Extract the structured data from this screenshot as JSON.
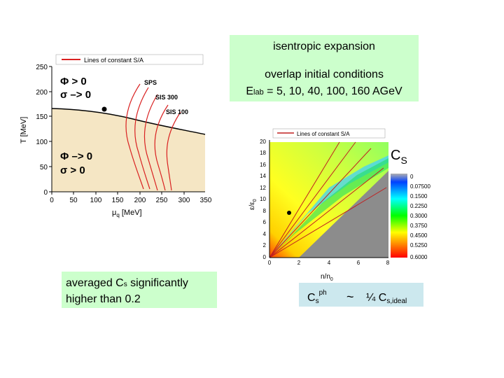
{
  "green_box": {
    "line1": "isentropic expansion",
    "line2": "overlap initial conditions",
    "line3_prefix": "E",
    "line3_sub": "lab",
    "line3_rest": " = 5, 10, 40, 100, 160 AGeV"
  },
  "left_plot": {
    "legend": "Lines of constant S/A",
    "ylabel": "T [MeV]",
    "xlabel_mu": "μ",
    "xlabel_sub": "q",
    "xlabel_unit": " [MeV]",
    "yticks": [
      "0",
      "50",
      "100",
      "150",
      "200",
      "250"
    ],
    "xticks": [
      "0",
      "50",
      "100",
      "150",
      "200",
      "250",
      "300",
      "350"
    ],
    "phase_upper_1": "Φ > 0",
    "phase_upper_2": "σ –> 0",
    "phase_lower_1": "Φ –> 0",
    "phase_lower_2": "σ > 0",
    "label_sps": "SPS",
    "label_sis300": "SIS 300",
    "label_sis100": "SIS 100",
    "colors": {
      "background": "#f5e6c4",
      "lines": "#d92020"
    }
  },
  "right_plot": {
    "legend": "Lines of constant S/A",
    "ylabel": "ε/ε",
    "ylabel_sub": "0",
    "xlabel": "n/n",
    "xlabel_sub": "0",
    "yticks": [
      "0",
      "2",
      "4",
      "6",
      "8",
      "10",
      "12",
      "14",
      "16",
      "18",
      "20"
    ],
    "xticks": [
      "0",
      "2",
      "4",
      "6",
      "8"
    ],
    "cs_label": "C",
    "cs_sub": "S",
    "colorbar_ticks": [
      "0",
      "0.07500",
      "0.1500",
      "0.2250",
      "0.3000",
      "0.3750",
      "0.4500",
      "0.5250",
      "0.6000"
    ]
  },
  "left_note": {
    "text_prefix": "averaged  C",
    "text_sub": "s",
    "text_rest": " significantly",
    "line2": "higher than 0.2"
  },
  "right_note": {
    "c": "C",
    "sub": "s",
    "sup": "ph",
    "tilde": "~",
    "rest": "¼ C",
    "sub2": "s,ideal"
  }
}
